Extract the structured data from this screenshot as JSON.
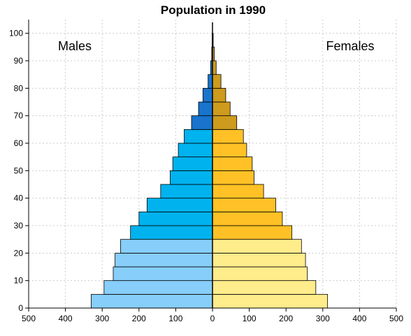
{
  "chart_data": {
    "type": "bar",
    "orientation": "horizontal",
    "title": "Population in 1990",
    "left_label": "Males",
    "right_label": "Females",
    "y_ticks": [
      "0",
      "10",
      "20",
      "30",
      "40",
      "50",
      "60",
      "70",
      "80",
      "90",
      "100"
    ],
    "x_ticks": [
      "500",
      "400",
      "300",
      "200",
      "100",
      "0",
      "100",
      "200",
      "300",
      "400",
      "500"
    ],
    "xlim": [
      -500,
      500
    ],
    "ylim": [
      0,
      105
    ],
    "bin_width": 5,
    "grid": true,
    "age_bins": [
      0,
      5,
      10,
      15,
      20,
      25,
      30,
      35,
      40,
      45,
      50,
      55,
      60,
      65,
      70,
      75,
      80,
      85,
      90,
      95,
      100
    ],
    "series": [
      {
        "name": "Males",
        "side": "left",
        "values": [
          330,
          295,
          270,
          265,
          250,
          223,
          200,
          178,
          141,
          115,
          108,
          93,
          77,
          57,
          38,
          26,
          12,
          5,
          2,
          1,
          0
        ]
      },
      {
        "name": "Females",
        "side": "right",
        "values": [
          313,
          281,
          258,
          253,
          242,
          216,
          190,
          172,
          139,
          113,
          108,
          93,
          84,
          66,
          48,
          36,
          23,
          10,
          5,
          2,
          0
        ]
      }
    ],
    "colors": {
      "male_young": "#87CEFA",
      "male_mid": "#00B2EE",
      "male_old": "#1874CD",
      "female_young": "#FFEC8B",
      "female_mid": "#FFC125",
      "female_old": "#CD9B1D",
      "center_line": "#000000",
      "grid": "#cccccc"
    }
  }
}
